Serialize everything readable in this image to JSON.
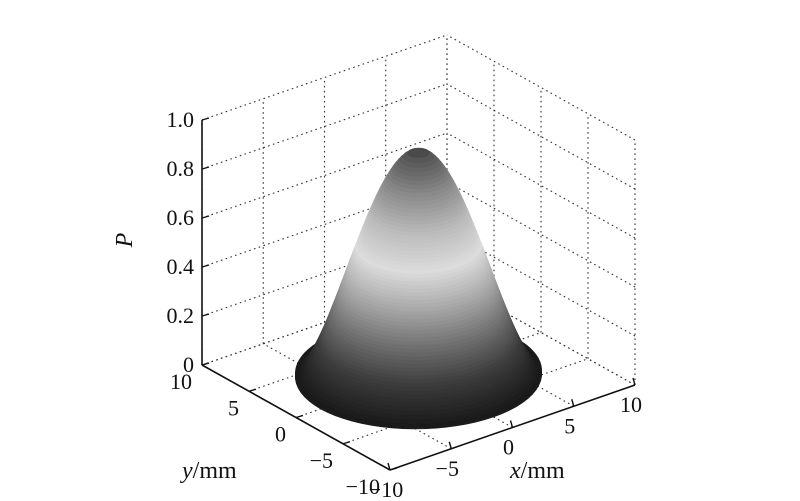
{
  "chart_data": {
    "type": "surface",
    "title": "",
    "zlabel": "P",
    "xlabel": {
      "var": "x",
      "unit": "/mm"
    },
    "ylabel": {
      "var": "y",
      "unit": "/mm"
    },
    "xlim": [
      -10,
      10
    ],
    "ylim": [
      -10,
      10
    ],
    "zlim": [
      0,
      1
    ],
    "x_ticks": [
      -10,
      -5,
      0,
      5,
      10
    ],
    "x_tick_labels": [
      "−10",
      "−5",
      "0",
      "5",
      "10"
    ],
    "y_ticks": [
      -10,
      -5,
      0,
      5,
      10
    ],
    "y_tick_labels": [
      "−10",
      "−5",
      "0",
      "5",
      "10"
    ],
    "z_ticks": [
      0,
      0.2,
      0.4,
      0.6,
      0.8,
      1.0
    ],
    "z_tick_labels": [
      "0",
      "0.2",
      "0.4",
      "0.6",
      "0.8",
      "1.0"
    ],
    "grid": true,
    "colormap": "gray",
    "surface": {
      "shape": "bell",
      "peak": 0.92,
      "support_radius_mm": 8,
      "surface_colors": [
        "#1a1a1a",
        "#3c3c3c",
        "#707070",
        "#a8a8a8",
        "#dcdcdc",
        "#bcbcbc",
        "#8a8a8a",
        "#4a4a4a"
      ]
    }
  }
}
